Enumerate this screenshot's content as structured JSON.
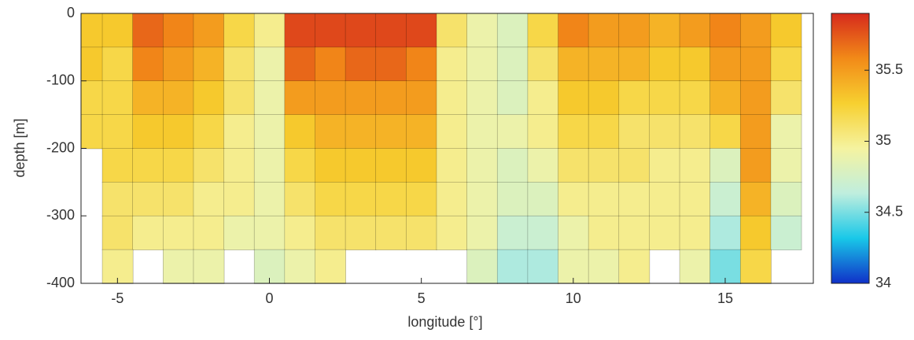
{
  "chart_data": {
    "type": "heatmap",
    "xlabel": "longitude [°]",
    "ylabel": "depth [m]",
    "x": [
      -6,
      -5,
      -4,
      -3,
      -2,
      -1,
      0,
      1,
      2,
      3,
      4,
      5,
      6,
      7,
      8,
      9,
      10,
      11,
      12,
      13,
      14,
      15,
      16,
      17
    ],
    "y": [
      -25,
      -75,
      -125,
      -175,
      -225,
      -275,
      -325,
      -375
    ],
    "z": [
      [
        35.3,
        35.3,
        35.7,
        35.6,
        35.5,
        35.2,
        35.0,
        35.8,
        35.8,
        35.8,
        35.8,
        35.8,
        35.1,
        34.9,
        34.8,
        35.2,
        35.6,
        35.5,
        35.5,
        35.4,
        35.5,
        35.6,
        35.5,
        35.3
      ],
      [
        35.3,
        35.2,
        35.6,
        35.5,
        35.4,
        35.1,
        34.9,
        35.7,
        35.6,
        35.7,
        35.7,
        35.6,
        35.0,
        34.9,
        34.8,
        35.1,
        35.4,
        35.4,
        35.4,
        35.3,
        35.3,
        35.5,
        35.5,
        35.2
      ],
      [
        35.2,
        35.2,
        35.4,
        35.4,
        35.3,
        35.1,
        34.9,
        35.5,
        35.5,
        35.5,
        35.5,
        35.5,
        35.0,
        34.9,
        34.8,
        35.0,
        35.3,
        35.3,
        35.2,
        35.2,
        35.2,
        35.4,
        35.5,
        35.1
      ],
      [
        35.2,
        35.2,
        35.3,
        35.3,
        35.2,
        35.0,
        34.9,
        35.3,
        35.4,
        35.4,
        35.4,
        35.4,
        35.0,
        34.9,
        34.9,
        35.0,
        35.2,
        35.2,
        35.1,
        35.1,
        35.1,
        35.2,
        35.5,
        34.9
      ],
      [
        null,
        35.2,
        35.2,
        35.2,
        35.1,
        35.0,
        34.9,
        35.2,
        35.3,
        35.3,
        35.3,
        35.3,
        35.0,
        34.9,
        34.8,
        34.9,
        35.1,
        35.1,
        35.1,
        35.0,
        35.0,
        34.8,
        35.5,
        34.9
      ],
      [
        null,
        35.1,
        35.1,
        35.1,
        35.0,
        35.0,
        34.9,
        35.1,
        35.2,
        35.2,
        35.2,
        35.2,
        35.0,
        34.9,
        34.8,
        34.8,
        35.0,
        35.0,
        35.0,
        35.0,
        35.0,
        34.7,
        35.4,
        34.8
      ],
      [
        null,
        35.1,
        35.0,
        35.0,
        35.0,
        34.9,
        34.9,
        35.0,
        35.1,
        35.1,
        35.1,
        35.1,
        35.0,
        34.9,
        34.7,
        34.7,
        34.9,
        35.0,
        35.0,
        35.0,
        35.0,
        34.6,
        35.3,
        34.7
      ],
      [
        null,
        35.0,
        null,
        34.9,
        34.9,
        null,
        34.8,
        34.9,
        35.0,
        null,
        null,
        null,
        null,
        34.8,
        34.6,
        34.6,
        34.9,
        34.9,
        35.0,
        null,
        34.9,
        34.5,
        35.2,
        null
      ]
    ],
    "xlim": [
      -6.2,
      17.9
    ],
    "xticks": [
      -5,
      0,
      5,
      10,
      15
    ],
    "ylim": [
      -400,
      0
    ],
    "yticks": [
      -400,
      -300,
      -200,
      -100,
      0
    ],
    "clim": [
      34,
      35.9
    ],
    "cticks": [
      34,
      34.5,
      35,
      35.5
    ],
    "colormap": [
      "#1030c8",
      "#19c8e8",
      "#bfeede",
      "#f5f3a0",
      "#f7d030",
      "#f28a18",
      "#d62a1c"
    ]
  }
}
